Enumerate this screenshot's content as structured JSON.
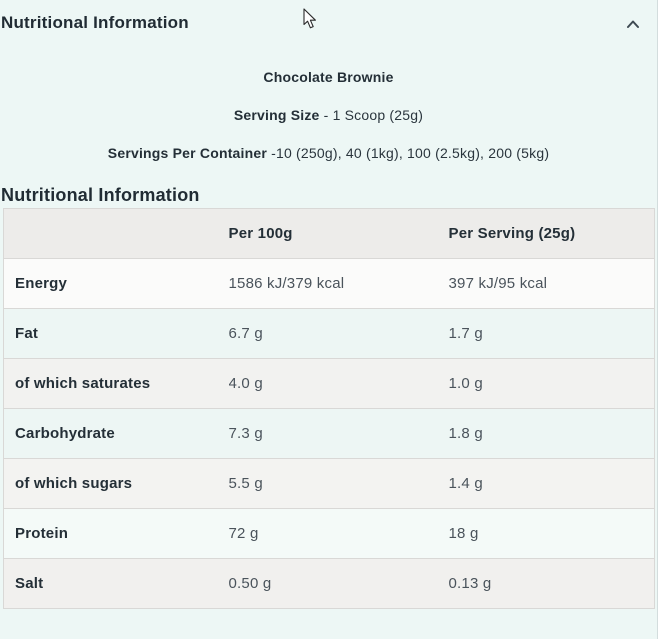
{
  "accordion": {
    "title": "Nutritional Information",
    "chevron_icon": "chevron-up"
  },
  "product": {
    "name": "Chocolate Brownie",
    "serving_size_label": "Serving Size",
    "serving_size_value": " - 1 Scoop (25g)",
    "servings_label": "Servings Per Container",
    "servings_value": " -10 (250g), 40 (1kg), 100 (2.5kg), 200 (5kg)"
  },
  "section": {
    "heading": "Nutritional Information"
  },
  "table": {
    "columns": [
      "",
      "Per 100g",
      "Per Serving (25g)"
    ],
    "header_bg": "#edecea",
    "border_color": "#d9d8d6",
    "rows": [
      {
        "label": "Energy",
        "per_100g": "1586 kJ/379 kcal",
        "per_serving": "397 kJ/95 kcal",
        "bg": "#fbfbfa"
      },
      {
        "label": "Fat",
        "per_100g": "6.7 g",
        "per_serving": "1.7 g",
        "bg": "#edf6f4"
      },
      {
        "label": "of which saturates",
        "per_100g": "4.0 g",
        "per_serving": "1.0 g",
        "bg": "#f2f2f0"
      },
      {
        "label": "Carbohydrate",
        "per_100g": "7.3 g",
        "per_serving": "1.8 g",
        "bg": "#edf6f4"
      },
      {
        "label": "of which sugars",
        "per_100g": "5.5 g",
        "per_serving": "1.4 g",
        "bg": "#f3f3f1"
      },
      {
        "label": "Protein",
        "per_100g": "72 g",
        "per_serving": "18 g",
        "bg": "#f4faf8"
      },
      {
        "label": "Salt",
        "per_100g": "0.50 g",
        "per_serving": "0.13 g",
        "bg": "#f1f0ee"
      }
    ]
  },
  "colors": {
    "page_bg": "#edf7f5",
    "heading_text": "#212c34",
    "value_text": "#4a535b",
    "icon_stroke": "#3e4a52"
  }
}
